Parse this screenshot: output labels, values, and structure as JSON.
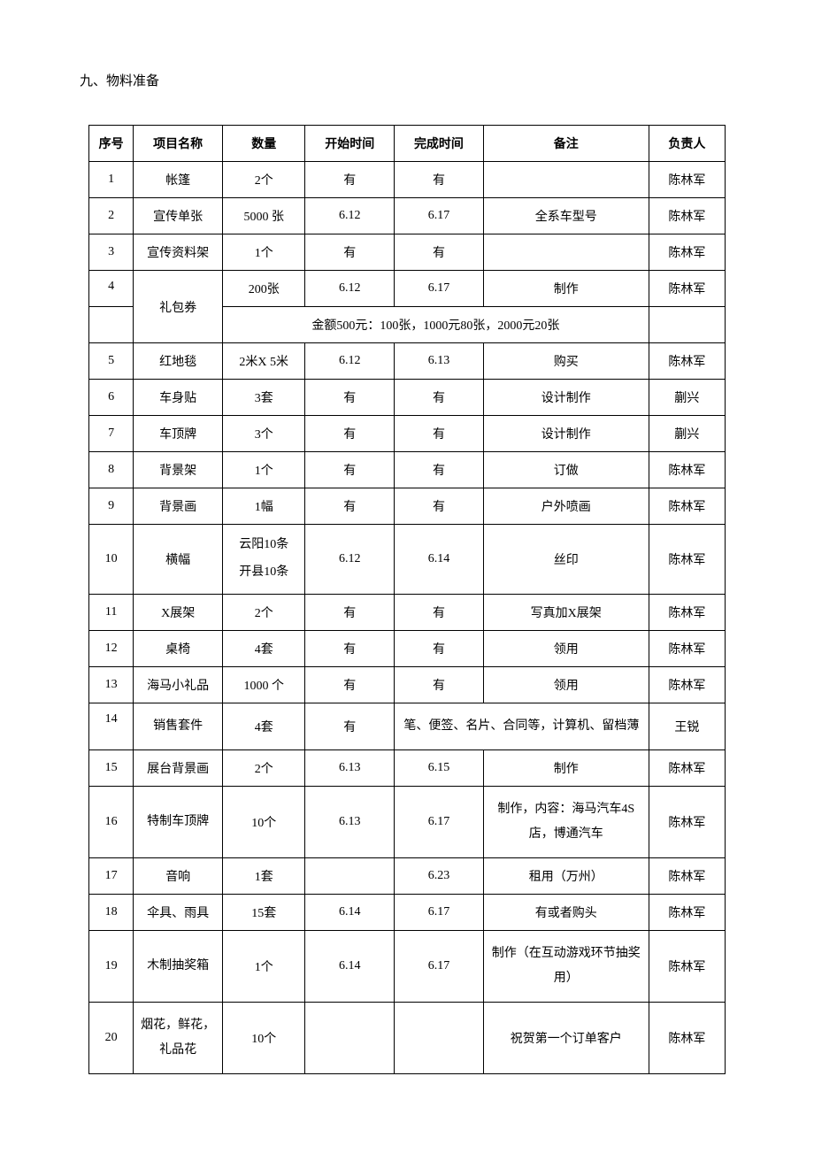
{
  "section_title": "九、物料准备",
  "table": {
    "columns": [
      "序号",
      "项目名称",
      "数量",
      "开始时间",
      "完成时间",
      "备注",
      "负责人"
    ],
    "merged_note_row4": "金额500元：100张，1000元80张，2000元20张",
    "rows": {
      "r1": {
        "no": "1",
        "name": "帐篷",
        "qty": "2个",
        "start": "有",
        "end": "有",
        "note": "",
        "owner": "陈林军"
      },
      "r2": {
        "no": "2",
        "name": "宣传单张",
        "qty": "5000 张",
        "start": "6.12",
        "end": "6.17",
        "note": "全系车型号",
        "owner": "陈林军"
      },
      "r3": {
        "no": "3",
        "name": "宣传资料架",
        "qty": "1个",
        "start": "有",
        "end": "有",
        "note": "",
        "owner": "陈林军"
      },
      "r4": {
        "no": "4",
        "name": "礼包券",
        "qty": "200张",
        "start": "6.12",
        "end": "6.17",
        "note": "制作",
        "owner": "陈林军"
      },
      "r5": {
        "no": "5",
        "name": "红地毯",
        "qty": "2米X 5米",
        "start": "6.12",
        "end": "6.13",
        "note": "购买",
        "owner": "陈林军"
      },
      "r6": {
        "no": "6",
        "name": "车身贴",
        "qty": "3套",
        "start": "有",
        "end": "有",
        "note": "设计制作",
        "owner": "蒯兴"
      },
      "r7": {
        "no": "7",
        "name": "车顶牌",
        "qty": "3个",
        "start": "有",
        "end": "有",
        "note": "设计制作",
        "owner": "蒯兴"
      },
      "r8": {
        "no": "8",
        "name": "背景架",
        "qty": "1个",
        "start": "有",
        "end": "有",
        "note": "订做",
        "owner": "陈林军"
      },
      "r9": {
        "no": "9",
        "name": "背景画",
        "qty": "1幅",
        "start": "有",
        "end": "有",
        "note": "户外喷画",
        "owner": "陈林军"
      },
      "r10": {
        "no": "10",
        "name": "横幅",
        "qty": "云阳10条\n开县10条",
        "start": "6.12",
        "end": "6.14",
        "note": "丝印",
        "owner": "陈林军"
      },
      "r11": {
        "no": "11",
        "name": "X展架",
        "qty": "2个",
        "start": "有",
        "end": "有",
        "note": "写真加X展架",
        "owner": "陈林军"
      },
      "r12": {
        "no": "12",
        "name": "桌椅",
        "qty": "4套",
        "start": "有",
        "end": "有",
        "note": "领用",
        "owner": "陈林军"
      },
      "r13": {
        "no": "13",
        "name": "海马小礼品",
        "qty": "1000 个",
        "start": "有",
        "end": "有",
        "note": "领用",
        "owner": "陈林军"
      },
      "r14": {
        "no": "14",
        "name": "销售套件",
        "qty": "4套",
        "start": "有",
        "note": "笔、便签、名片、合同等，计算机、留档薄",
        "owner": "王锐"
      },
      "r15": {
        "no": "15",
        "name": "展台背景画",
        "qty": "2个",
        "start": "6.13",
        "end": "6.15",
        "note": "制作",
        "owner": "陈林军"
      },
      "r16": {
        "no": "16",
        "name": "特制车顶牌",
        "qty": "10个",
        "start": "6.13",
        "end": "6.17",
        "note": "制作，内容：海马汽车4S店，博通汽车",
        "owner": "陈林军"
      },
      "r17": {
        "no": "17",
        "name": "音响",
        "qty": "1套",
        "start": "",
        "end": "6.23",
        "note": "租用（万州）",
        "owner": "陈林军"
      },
      "r18": {
        "no": "18",
        "name": "伞具、雨具",
        "qty": "15套",
        "start": "6.14",
        "end": "6.17",
        "note": "有或者购头",
        "owner": "陈林军"
      },
      "r19": {
        "no": "19",
        "name": "木制抽奖箱",
        "qty": "1个",
        "start": "6.14",
        "end": "6.17",
        "note": "制作（在互动游戏环节抽奖用）",
        "owner": "陈林军"
      },
      "r20": {
        "no": "20",
        "name": "烟花，鲜花，礼品花",
        "qty": "10个",
        "start": "",
        "end": "",
        "note": "祝贺第一个订单客户",
        "owner": "陈林军"
      }
    }
  }
}
